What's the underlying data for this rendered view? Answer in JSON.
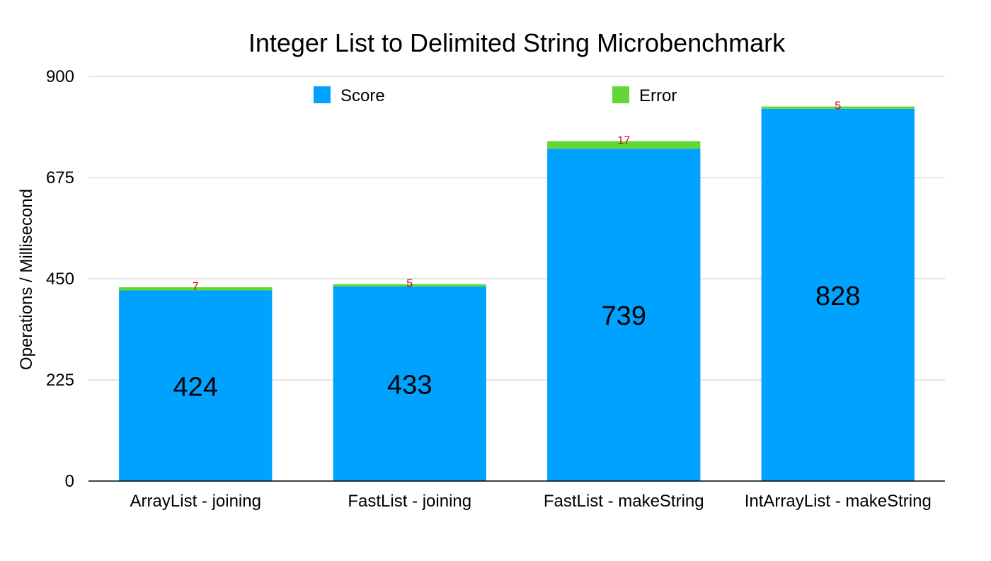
{
  "chart_data": {
    "type": "bar",
    "stacked": true,
    "title": "Integer List to Delimited String Microbenchmark",
    "xlabel": "",
    "ylabel": "Operations / Millisecond",
    "ylim": [
      0,
      900
    ],
    "yticks": [
      0,
      225,
      450,
      675,
      900
    ],
    "grid": true,
    "legend_position": "top",
    "categories": [
      "ArrayList - joining",
      "FastList - joining",
      "FastList - makeString",
      "IntArrayList - makeString"
    ],
    "series": [
      {
        "name": "Score",
        "color": "#00A2FF",
        "values": [
          424,
          433,
          739,
          828
        ]
      },
      {
        "name": "Error",
        "color": "#61D836",
        "values": [
          7,
          5,
          17,
          5
        ]
      }
    ],
    "error_label_color": "#E00000"
  }
}
